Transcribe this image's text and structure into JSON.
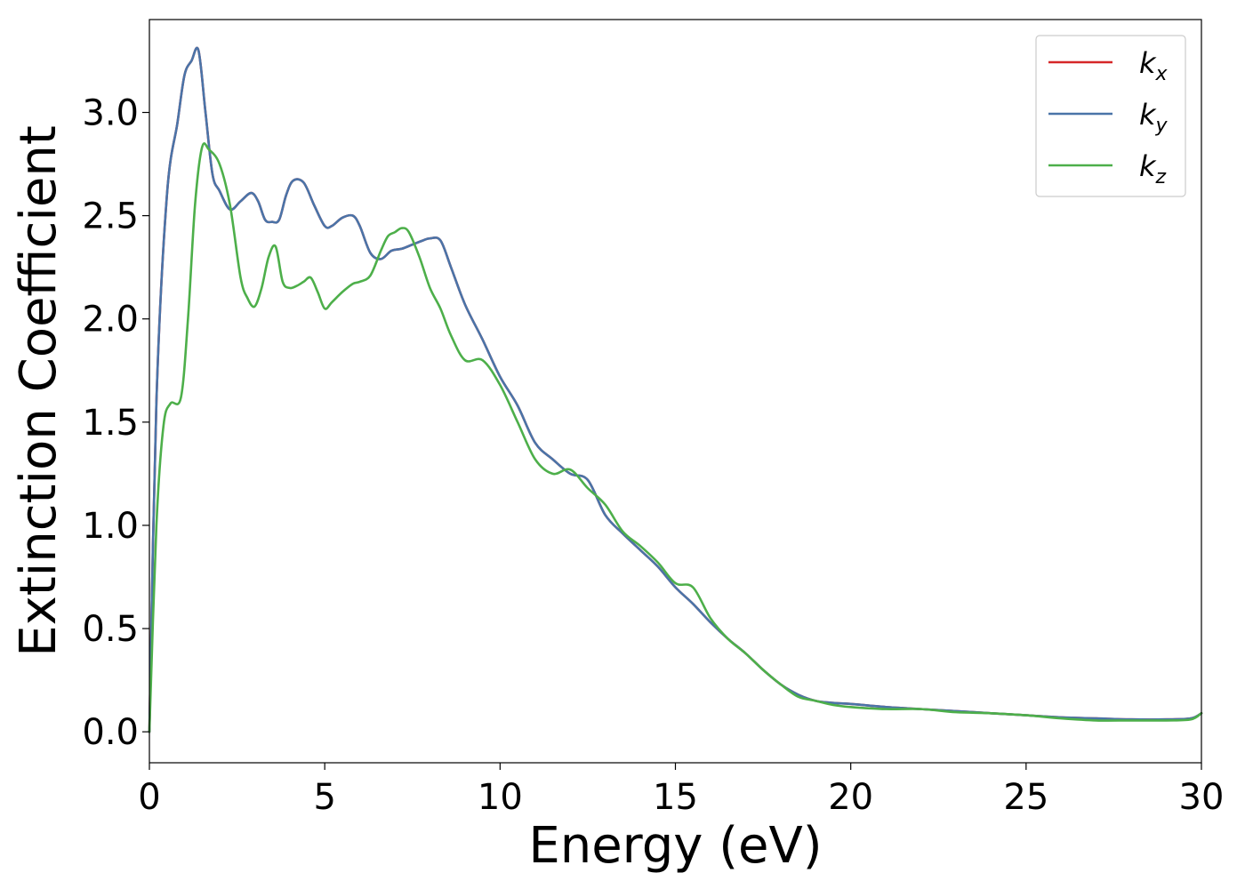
{
  "chart_data": {
    "type": "line",
    "xlabel": "Energy (eV)",
    "ylabel": "Extinction Coefficient",
    "xlim": [
      0,
      30
    ],
    "ylim": [
      -0.15,
      3.45
    ],
    "xticks": [
      0,
      5,
      10,
      15,
      20,
      25,
      30
    ],
    "xtick_labels": [
      "0",
      "5",
      "10",
      "15",
      "20",
      "25",
      "30"
    ],
    "yticks": [
      0.0,
      0.5,
      1.0,
      1.5,
      2.0,
      2.5,
      3.0
    ],
    "ytick_labels": [
      "0.0",
      "0.5",
      "1.0",
      "1.5",
      "2.0",
      "2.5",
      "3.0"
    ],
    "grid": false,
    "legend_position": "top-right",
    "series": [
      {
        "name": "k_x",
        "legend_base": "k",
        "legend_sub": "x",
        "color": "#d62728",
        "x": [
          0,
          0.2,
          0.5,
          0.8,
          1.0,
          1.2,
          1.4,
          1.6,
          1.8,
          2.0,
          2.3,
          2.6,
          2.9,
          3.1,
          3.3,
          3.5,
          3.7,
          3.9,
          4.1,
          4.4,
          4.7,
          5.0,
          5.2,
          5.5,
          5.8,
          6.0,
          6.3,
          6.6,
          6.9,
          7.2,
          7.5,
          7.8,
          8.0,
          8.3,
          8.6,
          9.0,
          9.5,
          10.0,
          10.5,
          11.0,
          11.5,
          12.0,
          12.5,
          13.0,
          13.5,
          14.0,
          14.5,
          15.0,
          15.5,
          16.0,
          16.5,
          17.0,
          17.5,
          18.0,
          18.5,
          19.0,
          19.5,
          20.0,
          21.0,
          22.0,
          23.0,
          24.0,
          25.0,
          26.0,
          27.0,
          28.0,
          29.0,
          29.7,
          30.0
        ],
        "y": [
          0.0,
          1.6,
          2.6,
          2.95,
          3.18,
          3.25,
          3.3,
          3.0,
          2.7,
          2.62,
          2.53,
          2.57,
          2.61,
          2.57,
          2.48,
          2.47,
          2.48,
          2.6,
          2.67,
          2.66,
          2.55,
          2.45,
          2.45,
          2.49,
          2.5,
          2.45,
          2.32,
          2.29,
          2.33,
          2.34,
          2.36,
          2.38,
          2.39,
          2.38,
          2.25,
          2.07,
          1.9,
          1.72,
          1.58,
          1.4,
          1.32,
          1.25,
          1.22,
          1.05,
          0.96,
          0.88,
          0.8,
          0.7,
          0.62,
          0.53,
          0.45,
          0.38,
          0.3,
          0.23,
          0.18,
          0.15,
          0.14,
          0.135,
          0.12,
          0.11,
          0.1,
          0.09,
          0.08,
          0.07,
          0.065,
          0.06,
          0.06,
          0.065,
          0.09
        ]
      },
      {
        "name": "k_y",
        "legend_base": "k",
        "legend_sub": "y",
        "color": "#4a74a8",
        "x": [
          0,
          0.2,
          0.5,
          0.8,
          1.0,
          1.2,
          1.4,
          1.6,
          1.8,
          2.0,
          2.3,
          2.6,
          2.9,
          3.1,
          3.3,
          3.5,
          3.7,
          3.9,
          4.1,
          4.4,
          4.7,
          5.0,
          5.2,
          5.5,
          5.8,
          6.0,
          6.3,
          6.6,
          6.9,
          7.2,
          7.5,
          7.8,
          8.0,
          8.3,
          8.6,
          9.0,
          9.5,
          10.0,
          10.5,
          11.0,
          11.5,
          12.0,
          12.5,
          13.0,
          13.5,
          14.0,
          14.5,
          15.0,
          15.5,
          16.0,
          16.5,
          17.0,
          17.5,
          18.0,
          18.5,
          19.0,
          19.5,
          20.0,
          21.0,
          22.0,
          23.0,
          24.0,
          25.0,
          26.0,
          27.0,
          28.0,
          29.0,
          29.7,
          30.0
        ],
        "y": [
          0.0,
          1.6,
          2.6,
          2.95,
          3.18,
          3.25,
          3.3,
          3.0,
          2.7,
          2.62,
          2.53,
          2.57,
          2.61,
          2.57,
          2.48,
          2.47,
          2.48,
          2.6,
          2.67,
          2.66,
          2.55,
          2.45,
          2.45,
          2.49,
          2.5,
          2.45,
          2.32,
          2.29,
          2.33,
          2.34,
          2.36,
          2.38,
          2.39,
          2.38,
          2.25,
          2.07,
          1.9,
          1.72,
          1.58,
          1.4,
          1.32,
          1.25,
          1.22,
          1.05,
          0.96,
          0.88,
          0.8,
          0.7,
          0.62,
          0.53,
          0.45,
          0.38,
          0.3,
          0.23,
          0.18,
          0.15,
          0.14,
          0.135,
          0.12,
          0.11,
          0.1,
          0.09,
          0.08,
          0.07,
          0.065,
          0.06,
          0.06,
          0.065,
          0.09
        ]
      },
      {
        "name": "k_z",
        "legend_base": "k",
        "legend_sub": "z",
        "color": "#4daf4a",
        "x": [
          0,
          0.2,
          0.4,
          0.6,
          0.9,
          1.1,
          1.3,
          1.5,
          1.7,
          2.0,
          2.3,
          2.6,
          2.8,
          3.0,
          3.2,
          3.4,
          3.6,
          3.8,
          4.0,
          4.2,
          4.4,
          4.6,
          4.8,
          5.0,
          5.2,
          5.5,
          5.8,
          6.0,
          6.3,
          6.6,
          6.8,
          7.0,
          7.2,
          7.4,
          7.7,
          8.0,
          8.3,
          8.6,
          9.0,
          9.5,
          10.0,
          10.5,
          11.0,
          11.5,
          12.0,
          12.5,
          13.0,
          13.5,
          14.0,
          14.5,
          15.0,
          15.5,
          16.0,
          16.5,
          17.0,
          17.5,
          18.0,
          18.5,
          19.0,
          19.5,
          20.0,
          21.0,
          22.0,
          23.0,
          24.0,
          25.0,
          26.0,
          27.0,
          28.0,
          29.0,
          29.7,
          30.0
        ],
        "y": [
          0.0,
          1.0,
          1.48,
          1.59,
          1.62,
          2.0,
          2.55,
          2.83,
          2.82,
          2.75,
          2.55,
          2.2,
          2.1,
          2.06,
          2.15,
          2.3,
          2.35,
          2.18,
          2.15,
          2.16,
          2.18,
          2.2,
          2.13,
          2.05,
          2.08,
          2.13,
          2.17,
          2.18,
          2.21,
          2.33,
          2.4,
          2.42,
          2.44,
          2.42,
          2.3,
          2.15,
          2.05,
          1.92,
          1.8,
          1.8,
          1.68,
          1.5,
          1.32,
          1.25,
          1.27,
          1.18,
          1.1,
          0.97,
          0.9,
          0.82,
          0.72,
          0.7,
          0.55,
          0.45,
          0.38,
          0.3,
          0.23,
          0.17,
          0.15,
          0.13,
          0.12,
          0.11,
          0.11,
          0.095,
          0.09,
          0.08,
          0.065,
          0.055,
          0.055,
          0.055,
          0.06,
          0.09
        ]
      }
    ]
  }
}
